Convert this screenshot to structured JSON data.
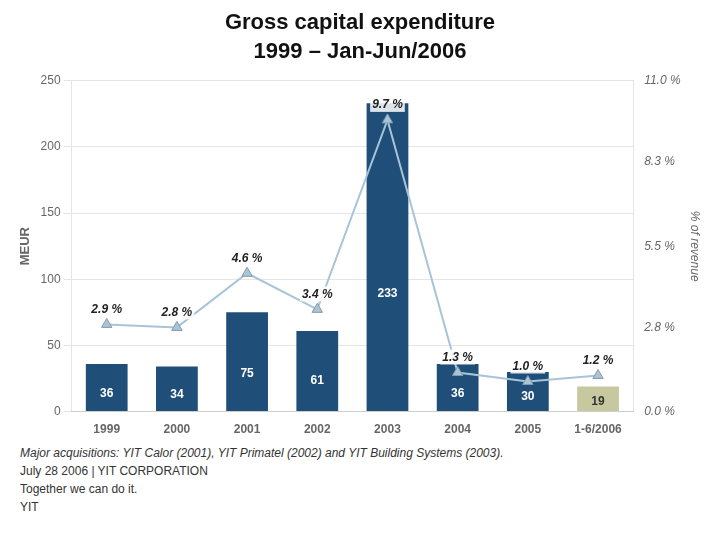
{
  "chart_data": {
    "type": "bar",
    "title": "Gross capital expenditure",
    "subtitle": "1999 – Jan-Jun/2006",
    "categories": [
      "1999",
      "2000",
      "2001",
      "2002",
      "2003",
      "2004",
      "2005",
      "1-6/2006"
    ],
    "series": [
      {
        "type": "bar",
        "colors": [
          "#1f4e79",
          "#1f4e79",
          "#1f4e79",
          "#1f4e79",
          "#1f4e79",
          "#1f4e79",
          "#1f4e79",
          "#c8c8a0"
        ],
        "values": [
          36,
          34,
          75,
          61,
          233,
          36,
          30,
          19
        ]
      },
      {
        "type": "line",
        "axis": "y2",
        "color": "#a8c4d8",
        "marker": "triangle",
        "values": [
          2.9,
          2.8,
          4.6,
          3.4,
          9.7,
          1.3,
          1.0,
          1.2
        ],
        "value_labels": [
          "2.9 %",
          "2.8 %",
          "4.6 %",
          "3.4 %",
          "9.7 %",
          "1.3 %",
          "1.0 %",
          "1.2 %"
        ]
      }
    ],
    "ylabel": "MEUR",
    "y2label": "% of revenue",
    "ylim": [
      0,
      250
    ],
    "yticks": [
      0,
      50,
      100,
      150,
      200,
      250
    ],
    "y2lim": [
      0,
      11.0
    ],
    "y2ticks": [
      {
        "value": 0.0,
        "label": "0.0 %"
      },
      {
        "value": 2.8,
        "label": "2.8 %"
      },
      {
        "value": 5.5,
        "label": "5.5 %"
      },
      {
        "value": 8.3,
        "label": "8.3 %"
      },
      {
        "value": 11.0,
        "label": "11.0 %"
      }
    ],
    "grid": true,
    "data_labels": true,
    "annotations": [
      "Major acquisitions: YIT Calor (2001), YIT Primatel (2002) and YIT Building Systems (2003).",
      "July 28  2006   |   YIT CORPORATION",
      "Together we can do it.",
      "YIT"
    ]
  }
}
